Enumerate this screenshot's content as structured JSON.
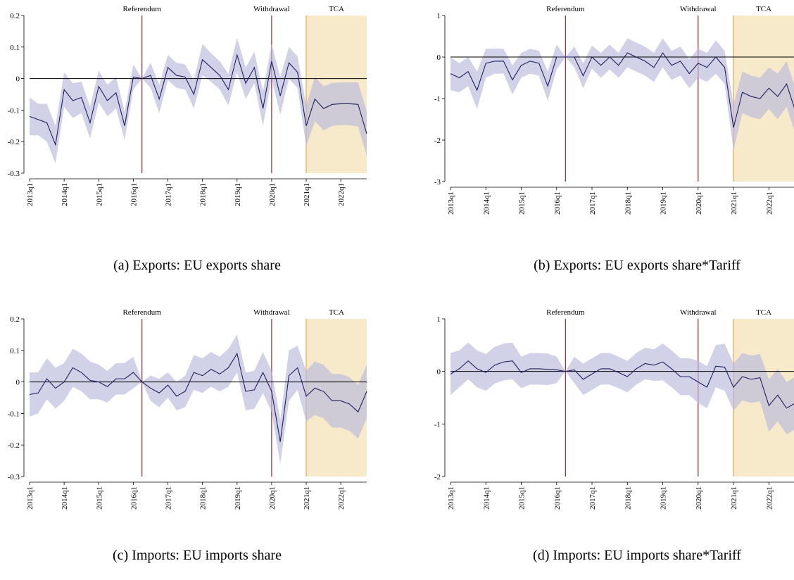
{
  "chart_data": [
    {
      "type": "line",
      "caption": "(a) Exports: EU exports share",
      "categories": [
        "2013q1",
        null,
        null,
        null,
        "2014q1",
        null,
        null,
        null,
        "2015q1",
        null,
        null,
        null,
        "2016q1",
        null,
        null,
        null,
        "2017q1",
        null,
        null,
        null,
        "2018q1",
        null,
        null,
        null,
        "2019q1",
        null,
        null,
        null,
        "2020q1",
        null,
        null,
        null,
        "2021q1",
        null,
        null,
        null,
        "2022q1",
        null,
        null,
        null
      ],
      "series": [
        {
          "color": "#1f1f5c",
          "band_color": "#b8b8dc",
          "values": [
            -0.12,
            -0.13,
            -0.14,
            -0.21,
            -0.035,
            -0.07,
            -0.06,
            -0.14,
            -0.025,
            -0.07,
            -0.045,
            -0.15,
            0.005,
            0,
            0.01,
            -0.065,
            0.035,
            0.01,
            0.005,
            -0.05,
            0.06,
            0.035,
            0.01,
            -0.035,
            0.075,
            -0.015,
            0.035,
            -0.095,
            0.055,
            -0.055,
            0.05,
            0.02,
            -0.15,
            -0.065,
            -0.095,
            -0.082,
            -0.08,
            -0.08,
            -0.082,
            -0.175
          ],
          "errors": [
            0.06,
            0.05,
            0.06,
            0.06,
            0.055,
            0.055,
            0.05,
            0.05,
            0.05,
            0.05,
            0.05,
            0.045,
            0.04,
            0,
            0.04,
            0.045,
            0.04,
            0.04,
            0.04,
            0.045,
            0.05,
            0.045,
            0.045,
            0.05,
            0.055,
            0.05,
            0.05,
            0.055,
            0.055,
            0.06,
            0.05,
            0.05,
            0.065,
            0.07,
            0.07,
            0.068,
            0.068,
            0.068,
            0.07,
            0.07
          ]
        }
      ],
      "ylim": [
        -0.3,
        0.2
      ],
      "yticks": [
        -0.3,
        -0.2,
        -0.1,
        0,
        0.1,
        0.2
      ],
      "events": [
        {
          "label": "Referendum",
          "x": 13,
          "color": "#a0282d"
        },
        {
          "label": "Withdrawal",
          "x": 28,
          "color": "#a0282d"
        }
      ],
      "shade": {
        "label": "TCA",
        "from": 32,
        "to": 39,
        "color": "#f7eacb",
        "edge_color": "#e8a84a"
      }
    },
    {
      "type": "line",
      "caption": "(b) Exports: EU exports share*Tariff",
      "categories": [
        "2013q1",
        null,
        null,
        null,
        "2014q1",
        null,
        null,
        null,
        "2015q1",
        null,
        null,
        null,
        "2016q1",
        null,
        null,
        null,
        "2017q1",
        null,
        null,
        null,
        "2018q1",
        null,
        null,
        null,
        "2019q1",
        null,
        null,
        null,
        "2020q1",
        null,
        null,
        null,
        "2021q1",
        null,
        null,
        null,
        "2022q1",
        null,
        null,
        null
      ],
      "series": [
        {
          "color": "#1f1f5c",
          "band_color": "#b8b8dc",
          "values": [
            -0.4,
            -0.5,
            -0.35,
            -0.8,
            -0.15,
            -0.1,
            -0.1,
            -0.55,
            -0.2,
            -0.1,
            -0.15,
            -0.7,
            0,
            0,
            0,
            -0.45,
            0,
            -0.2,
            0,
            -0.2,
            0.1,
            0,
            -0.1,
            -0.25,
            0.1,
            -0.2,
            -0.1,
            -0.4,
            -0.15,
            -0.25,
            0,
            -0.25,
            -1.7,
            -0.85,
            -0.95,
            -1.0,
            -0.75,
            -0.95,
            -0.65,
            -1.3
          ],
          "errors": [
            0.4,
            0.35,
            0.35,
            0.45,
            0.35,
            0.3,
            0.3,
            0.35,
            0.3,
            0.3,
            0.3,
            0.35,
            0.3,
            0,
            0.25,
            0.3,
            0.28,
            0.3,
            0.3,
            0.3,
            0.35,
            0.35,
            0.35,
            0.35,
            0.35,
            0.35,
            0.35,
            0.35,
            0.35,
            0.35,
            0.4,
            0.4,
            0.55,
            0.5,
            0.5,
            0.5,
            0.5,
            0.55,
            0.55,
            0.55
          ]
        }
      ],
      "ylim": [
        -3,
        1
      ],
      "yticks": [
        -3,
        -2,
        -1,
        0,
        1
      ],
      "events": [
        {
          "label": "Referendum",
          "x": 13,
          "color": "#a0282d"
        },
        {
          "label": "Withdrawal",
          "x": 28,
          "color": "#a0282d"
        }
      ],
      "shade": {
        "label": "TCA",
        "from": 32,
        "to": 39,
        "color": "#f7eacb",
        "edge_color": "#e8a84a"
      }
    },
    {
      "type": "line",
      "caption": "(c) Imports: EU imports share",
      "categories": [
        "2013q1",
        null,
        null,
        null,
        "2014q1",
        null,
        null,
        null,
        "2015q1",
        null,
        null,
        null,
        "2016q1",
        null,
        null,
        null,
        "2017q1",
        null,
        null,
        null,
        "2018q1",
        null,
        null,
        null,
        "2019q1",
        null,
        null,
        null,
        "2020q1",
        null,
        null,
        null,
        "2021q1",
        null,
        null,
        null,
        "2022q1",
        null,
        null,
        null
      ],
      "series": [
        {
          "color": "#1f1f5c",
          "band_color": "#b8b8dc",
          "values": [
            -0.04,
            -0.035,
            0.01,
            -0.02,
            0,
            0.045,
            0.03,
            0.005,
            0,
            -0.015,
            0.01,
            0.01,
            0.03,
            0,
            -0.02,
            -0.035,
            -0.01,
            -0.045,
            -0.03,
            0.03,
            0.02,
            0.04,
            0.025,
            0.045,
            0.09,
            -0.03,
            -0.025,
            0.03,
            -0.03,
            -0.19,
            0.02,
            0.045,
            -0.045,
            -0.02,
            -0.03,
            -0.06,
            -0.06,
            -0.07,
            -0.095,
            -0.03
          ],
          "errors": [
            0.07,
            0.065,
            0.065,
            0.065,
            0.06,
            0.06,
            0.06,
            0.06,
            0.055,
            0.05,
            0.05,
            0.05,
            0.05,
            0,
            0.04,
            0.045,
            0.04,
            0.045,
            0.05,
            0.055,
            0.055,
            0.055,
            0.055,
            0.06,
            0.06,
            0.06,
            0.06,
            0.065,
            0.065,
            0.07,
            0.08,
            0.07,
            0.08,
            0.085,
            0.085,
            0.085,
            0.085,
            0.085,
            0.085,
            0.085
          ]
        }
      ],
      "ylim": [
        -0.3,
        0.2
      ],
      "yticks": [
        -0.3,
        -0.2,
        -0.1,
        0,
        0.1,
        0.2
      ],
      "events": [
        {
          "label": "Referendum",
          "x": 13,
          "color": "#a0282d"
        },
        {
          "label": "Withdrawal",
          "x": 28,
          "color": "#a0282d"
        }
      ],
      "shade": {
        "label": "TCA",
        "from": 32,
        "to": 39,
        "color": "#f7eacb",
        "edge_color": "#e8a84a"
      }
    },
    {
      "type": "line",
      "caption": "(d) Imports: EU imports share*Tariff",
      "categories": [
        "2013q1",
        null,
        null,
        null,
        "2014q1",
        null,
        null,
        null,
        "2015q1",
        null,
        null,
        null,
        "2016q1",
        null,
        null,
        null,
        "2017q1",
        null,
        null,
        null,
        "2018q1",
        null,
        null,
        null,
        "2019q1",
        null,
        null,
        null,
        "2020q1",
        null,
        null,
        null,
        "2021q1",
        null,
        null,
        null,
        "2022q1",
        null,
        null,
        null
      ],
      "series": [
        {
          "color": "#1f1f5c",
          "band_color": "#b8b8dc",
          "values": [
            -0.05,
            0.05,
            0.2,
            0.05,
            -0.02,
            0.12,
            0.18,
            0.2,
            -0.02,
            0.05,
            0.05,
            0.04,
            0.03,
            0,
            0.03,
            -0.15,
            -0.05,
            0.05,
            0.05,
            -0.02,
            -0.1,
            0.05,
            0.15,
            0.12,
            0.18,
            0.05,
            -0.1,
            -0.1,
            -0.2,
            -0.3,
            0.1,
            0.08,
            -0.3,
            -0.1,
            -0.15,
            -0.12,
            -0.65,
            -0.45,
            -0.7,
            -0.6
          ],
          "errors": [
            0.4,
            0.35,
            0.35,
            0.35,
            0.35,
            0.35,
            0.35,
            0.35,
            0.3,
            0.3,
            0.3,
            0.3,
            0.25,
            0,
            0.25,
            0.3,
            0.3,
            0.3,
            0.3,
            0.3,
            0.3,
            0.3,
            0.3,
            0.3,
            0.35,
            0.35,
            0.35,
            0.35,
            0.4,
            0.4,
            0.4,
            0.45,
            0.45,
            0.45,
            0.45,
            0.45,
            0.5,
            0.5,
            0.5,
            0.5
          ]
        }
      ],
      "ylim": [
        -2,
        1
      ],
      "yticks": [
        -2,
        -1,
        0,
        1
      ],
      "events": [
        {
          "label": "Referendum",
          "x": 13,
          "color": "#a0282d"
        },
        {
          "label": "Withdrawal",
          "x": 28,
          "color": "#a0282d"
        }
      ],
      "shade": {
        "label": "TCA",
        "from": 32,
        "to": 39,
        "color": "#f7eacb",
        "edge_color": "#e8a84a"
      }
    }
  ]
}
